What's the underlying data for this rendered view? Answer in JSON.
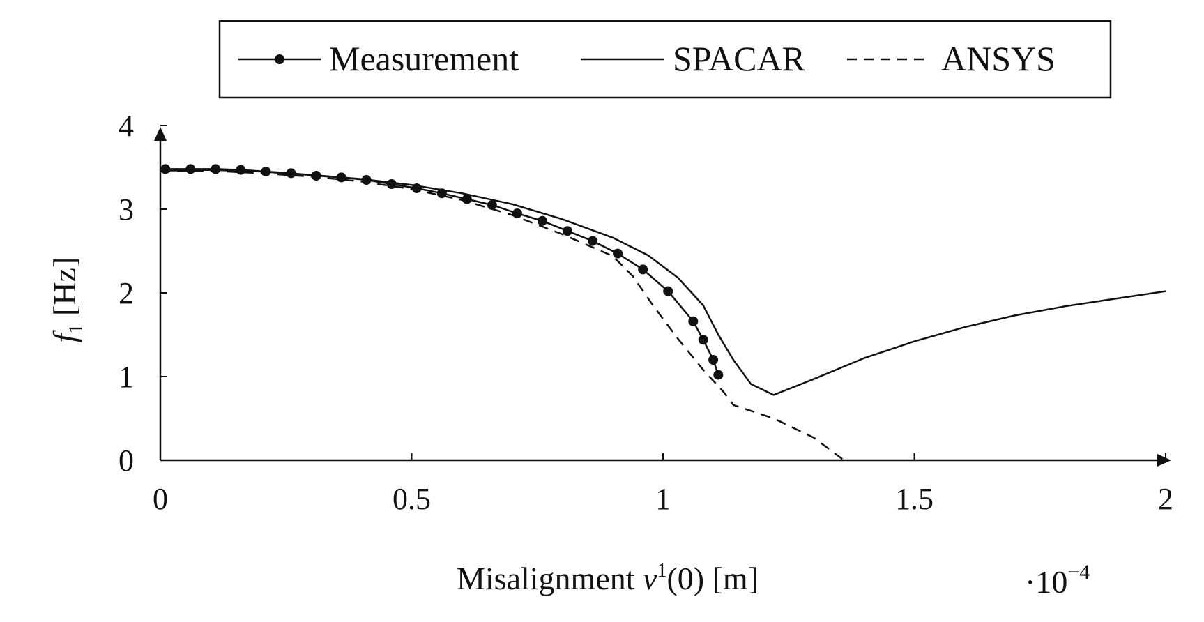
{
  "chart_data": {
    "type": "line",
    "xlabel": {
      "prefix": "Misalignment ",
      "var": "v",
      "sup": "1",
      "suffix": "(0) [m]"
    },
    "ylabel": {
      "var": "f",
      "sub": "1",
      "suffix": " [Hz]"
    },
    "x_multiplier": {
      "dot": "·10",
      "exp": "−4"
    },
    "xlim": [
      0,
      2
    ],
    "ylim": [
      0,
      4
    ],
    "xticks": [
      0,
      0.5,
      1,
      1.5,
      2
    ],
    "xtick_labels": [
      "0",
      "0.5",
      "1",
      "1.5",
      "2"
    ],
    "yticks": [
      0,
      1,
      2,
      3,
      4
    ],
    "ytick_labels": [
      "0",
      "1",
      "2",
      "3",
      "4"
    ],
    "grid": false,
    "legend_position": "top",
    "series": [
      {
        "name": "Measurement",
        "style": "solid-markers",
        "points": [
          [
            0.01,
            3.48
          ],
          [
            0.06,
            3.48
          ],
          [
            0.11,
            3.48
          ],
          [
            0.16,
            3.47
          ],
          [
            0.21,
            3.45
          ],
          [
            0.26,
            3.43
          ],
          [
            0.31,
            3.4
          ],
          [
            0.36,
            3.38
          ],
          [
            0.41,
            3.35
          ],
          [
            0.46,
            3.3
          ],
          [
            0.51,
            3.25
          ],
          [
            0.56,
            3.19
          ],
          [
            0.61,
            3.12
          ],
          [
            0.66,
            3.05
          ],
          [
            0.71,
            2.95
          ],
          [
            0.76,
            2.86
          ],
          [
            0.81,
            2.74
          ],
          [
            0.86,
            2.62
          ],
          [
            0.91,
            2.47
          ],
          [
            0.96,
            2.28
          ],
          [
            1.01,
            2.02
          ],
          [
            1.06,
            1.66
          ],
          [
            1.08,
            1.44
          ],
          [
            1.1,
            1.2
          ],
          [
            1.11,
            1.02
          ]
        ]
      },
      {
        "name": "SPACAR",
        "style": "solid",
        "points": [
          [
            0,
            3.46
          ],
          [
            0.1,
            3.47
          ],
          [
            0.2,
            3.45
          ],
          [
            0.3,
            3.41
          ],
          [
            0.4,
            3.36
          ],
          [
            0.5,
            3.29
          ],
          [
            0.6,
            3.19
          ],
          [
            0.7,
            3.06
          ],
          [
            0.8,
            2.88
          ],
          [
            0.9,
            2.66
          ],
          [
            0.97,
            2.45
          ],
          [
            1.03,
            2.18
          ],
          [
            1.08,
            1.85
          ],
          [
            1.11,
            1.5
          ],
          [
            1.14,
            1.2
          ],
          [
            1.175,
            0.91
          ],
          [
            1.22,
            0.78
          ],
          [
            1.3,
            0.97
          ],
          [
            1.4,
            1.22
          ],
          [
            1.5,
            1.42
          ],
          [
            1.6,
            1.59
          ],
          [
            1.7,
            1.73
          ],
          [
            1.8,
            1.84
          ],
          [
            1.9,
            1.93
          ],
          [
            2.0,
            2.02
          ]
        ]
      },
      {
        "name": "ANSYS",
        "style": "dashed",
        "points": [
          [
            0,
            3.45
          ],
          [
            0.1,
            3.46
          ],
          [
            0.2,
            3.43
          ],
          [
            0.3,
            3.39
          ],
          [
            0.4,
            3.33
          ],
          [
            0.5,
            3.24
          ],
          [
            0.6,
            3.11
          ],
          [
            0.7,
            2.93
          ],
          [
            0.8,
            2.7
          ],
          [
            0.9,
            2.44
          ],
          [
            0.94,
            2.2
          ],
          [
            0.98,
            1.85
          ],
          [
            1.03,
            1.45
          ],
          [
            1.08,
            1.08
          ],
          [
            1.12,
            0.82
          ],
          [
            1.14,
            0.66
          ],
          [
            1.22,
            0.5
          ],
          [
            1.3,
            0.27
          ],
          [
            1.36,
            0.0
          ]
        ]
      }
    ]
  }
}
